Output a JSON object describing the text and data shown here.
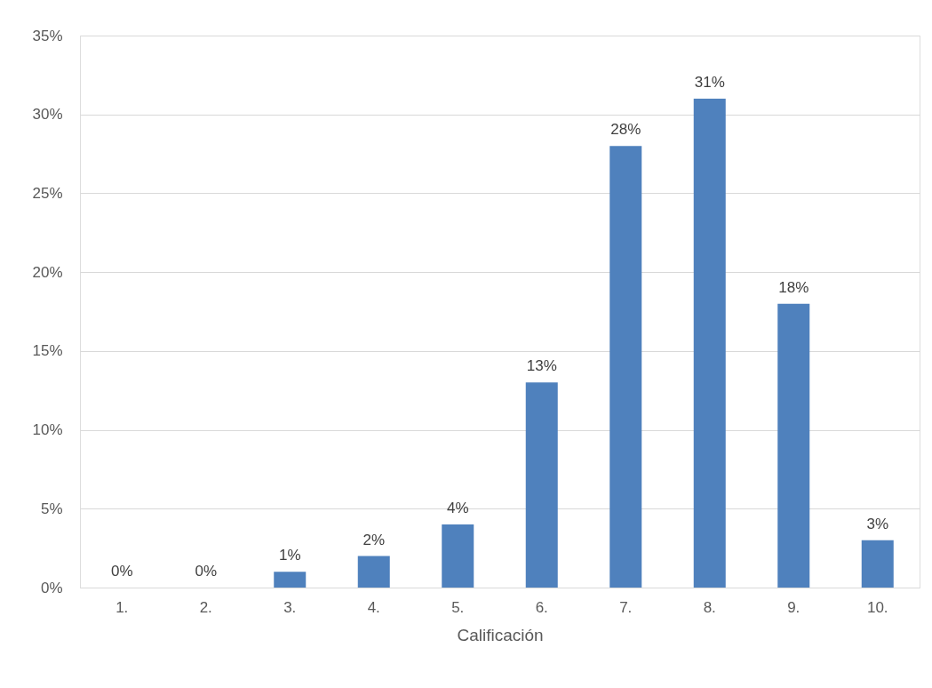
{
  "chart_data": {
    "type": "bar",
    "xlabel": "Calificación",
    "categories": [
      "1.",
      "2.",
      "3.",
      "4.",
      "5.",
      "6.",
      "7.",
      "8.",
      "9.",
      "10."
    ],
    "values": [
      0,
      0,
      1,
      2,
      4,
      13,
      28,
      31,
      18,
      3
    ],
    "value_labels": [
      "0%",
      "0%",
      "1%",
      "2%",
      "4%",
      "13%",
      "28%",
      "31%",
      "18%",
      "3%"
    ],
    "color": "#4f81bd",
    "ylim": [
      0,
      35
    ],
    "yticks": [
      {
        "value": 0,
        "label": "0%"
      },
      {
        "value": 5,
        "label": "5%"
      },
      {
        "value": 10,
        "label": "10%"
      },
      {
        "value": 15,
        "label": "15%"
      },
      {
        "value": 20,
        "label": "20%"
      },
      {
        "value": 25,
        "label": "25%"
      },
      {
        "value": 30,
        "label": "30%"
      },
      {
        "value": 35,
        "label": "35%"
      }
    ],
    "grid": "y"
  }
}
